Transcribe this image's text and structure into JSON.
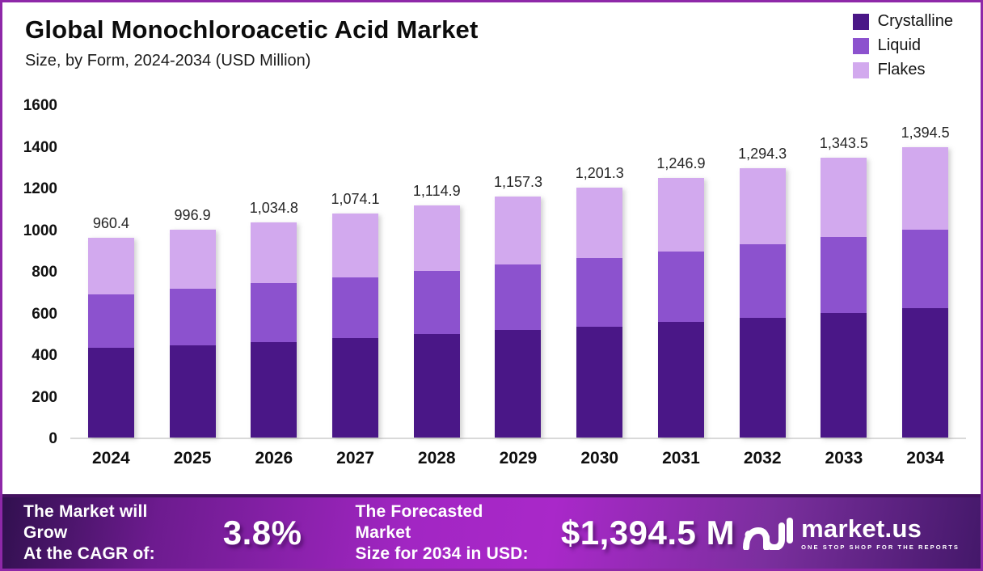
{
  "header": {
    "title": "Global Monochloroacetic Acid Market",
    "subtitle": "Size, by Form, 2024-2034 (USD Million)"
  },
  "colors": {
    "crystalline": "#4a1787",
    "liquid": "#8c52ce",
    "flakes": "#d2a9ee",
    "frame_border": "#8e28a8",
    "banner_center": "#a226c3"
  },
  "legend": [
    {
      "label": "Crystalline",
      "color": "#4a1787"
    },
    {
      "label": "Liquid",
      "color": "#8c52ce"
    },
    {
      "label": "Flakes",
      "color": "#d2a9ee"
    }
  ],
  "chart_data": {
    "type": "bar",
    "stacked": true,
    "title": "Global Monochloroacetic Acid Market",
    "subtitle": "Size, by Form, 2024-2034 (USD Million)",
    "xlabel": "",
    "ylabel": "USD Million",
    "ylim": [
      0,
      1600
    ],
    "yticks": [
      0,
      200,
      400,
      600,
      800,
      1000,
      1200,
      1400,
      1600
    ],
    "grid": false,
    "legend_position": "top-right",
    "categories": [
      "2024",
      "2025",
      "2026",
      "2027",
      "2028",
      "2029",
      "2030",
      "2031",
      "2032",
      "2033",
      "2034"
    ],
    "series": [
      {
        "name": "Crystalline",
        "color": "#4a1787",
        "values": [
          430.0,
          443.0,
          459.0,
          477.0,
          496.0,
          515.0,
          534.0,
          554.0,
          575.0,
          597.0,
          620.0
        ]
      },
      {
        "name": "Liquid",
        "color": "#8c52ce",
        "values": [
          258.0,
          271.0,
          282.0,
          292.0,
          303.0,
          315.0,
          327.0,
          339.0,
          352.0,
          365.0,
          379.0
        ]
      },
      {
        "name": "Flakes",
        "color": "#d2a9ee",
        "values": [
          272.4,
          282.9,
          293.8,
          305.1,
          315.9,
          327.3,
          340.3,
          353.9,
          367.3,
          381.5,
          395.5
        ]
      }
    ],
    "totals": [
      960.4,
      996.9,
      1034.8,
      1074.1,
      1114.9,
      1157.3,
      1201.3,
      1246.9,
      1294.3,
      1343.5,
      1394.5
    ],
    "total_labels": [
      "960.4",
      "996.9",
      "1,034.8",
      "1,074.1",
      "1,114.9",
      "1,157.3",
      "1,201.3",
      "1,246.9",
      "1,294.3",
      "1,343.5",
      "1,394.5"
    ]
  },
  "banner": {
    "cagr_label_line1": "The Market will Grow",
    "cagr_label_line2": "At the CAGR of:",
    "cagr_value": "3.8%",
    "forecast_label_line1": "The Forecasted Market",
    "forecast_label_line2": "Size for 2034 in USD:",
    "forecast_value": "$1,394.5 M",
    "logo_name": "market.us",
    "logo_tagline": "ONE STOP SHOP FOR THE REPORTS"
  }
}
